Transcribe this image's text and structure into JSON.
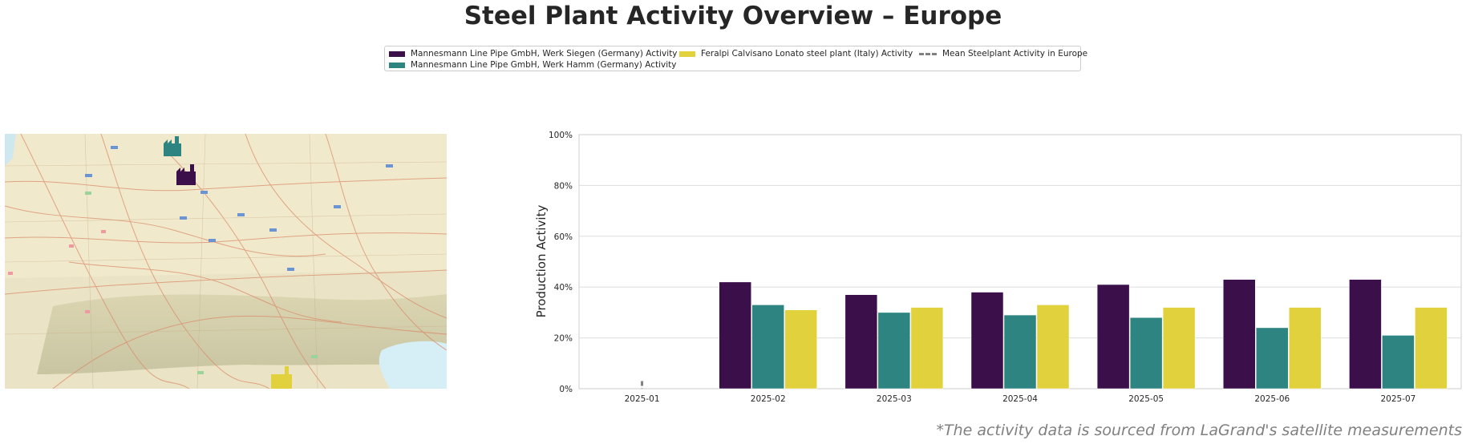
{
  "title": "Steel Plant Activity Overview – Europe",
  "legend": {
    "siegen": "Mannesmann Line Pipe GmbH, Werk Siegen (Germany) Activity",
    "hamm": "Mannesmann Line Pipe GmbH, Werk Hamm (Germany) Activity",
    "feralpi": "Feralpi Calvisano Lonato steel plant (Italy) Activity",
    "mean": "Mean Steelplant Activity in Europe"
  },
  "colors": {
    "siegen": "#3b0f4a",
    "hamm": "#2d8480",
    "feralpi": "#e1d13c",
    "mean": "#808080",
    "grid": "#dddddd"
  },
  "map": {
    "icons": [
      "factory-icon-hamm",
      "factory-icon-siegen",
      "factory-icon-feralpi"
    ]
  },
  "footnote": "*The activity data is sourced from LaGrand's satellite measurements",
  "chart_data": {
    "type": "bar",
    "categories": [
      "2025-01",
      "2025-02",
      "2025-03",
      "2025-04",
      "2025-05",
      "2025-06",
      "2025-07"
    ],
    "series": [
      {
        "name": "Mannesmann Line Pipe GmbH, Werk Siegen (Germany) Activity",
        "values": [
          null,
          42,
          37,
          38,
          41,
          43,
          43
        ]
      },
      {
        "name": "Mannesmann Line Pipe GmbH, Werk Hamm (Germany) Activity",
        "values": [
          null,
          33,
          30,
          29,
          28,
          24,
          21
        ]
      },
      {
        "name": "Feralpi Calvisano Lonato steel plant (Italy) Activity",
        "values": [
          null,
          31,
          32,
          33,
          32,
          32,
          32
        ]
      }
    ],
    "mean_series": {
      "name": "Mean Steelplant Activity in Europe",
      "values": [
        3,
        null,
        null,
        null,
        null,
        null,
        null
      ]
    },
    "ylabel": "Production Activity",
    "ylim": [
      0,
      100
    ],
    "yticks": [
      0,
      20,
      40,
      60,
      80,
      100
    ],
    "ytick_labels": [
      "0%",
      "20%",
      "40%",
      "60%",
      "80%",
      "100%"
    ],
    "grid": true,
    "legend_position": "top-center"
  }
}
